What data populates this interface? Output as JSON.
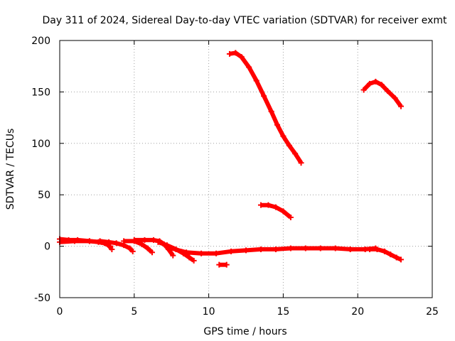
{
  "chart_data": {
    "type": "scatter",
    "title": "Day 311 of 2024, Sidereal Day-to-day VTEC variation (SDTVAR) for receiver exmt",
    "xlabel": "GPS time / hours",
    "ylabel": "SDTVAR / TECUs",
    "xlim": [
      0,
      25
    ],
    "ylim": [
      -50,
      200
    ],
    "x_ticks": [
      "0",
      "5",
      "10",
      "15",
      "20",
      "25"
    ],
    "y_ticks": [
      "-50",
      "0",
      "50",
      "100",
      "150",
      "200"
    ],
    "grid": true,
    "color": "#ff0000",
    "series": [
      {
        "name": "track-1",
        "x": [
          0.0,
          0.6,
          1.2,
          2.0,
          2.8,
          3.2,
          3.5
        ],
        "y": [
          7,
          6,
          6,
          5,
          4,
          2,
          -3
        ]
      },
      {
        "name": "track-2",
        "x": [
          0.0,
          1.0,
          2.0,
          2.6,
          3.0,
          3.4
        ],
        "y": [
          4,
          5,
          5,
          4,
          3,
          0
        ]
      },
      {
        "name": "track-3",
        "x": [
          2.7,
          3.3,
          3.8,
          4.3,
          4.7,
          4.9
        ],
        "y": [
          5,
          4,
          3,
          1,
          -2,
          -5
        ]
      },
      {
        "name": "track-4",
        "x": [
          4.3,
          5.0,
          5.5,
          5.9,
          6.2
        ],
        "y": [
          5,
          5,
          2,
          -2,
          -6
        ]
      },
      {
        "name": "track-5",
        "x": [
          5.0,
          5.7,
          6.3,
          6.7,
          7.0,
          7.3,
          7.6
        ],
        "y": [
          6,
          6,
          6,
          5,
          2,
          -3,
          -9
        ]
      },
      {
        "name": "track-6",
        "x": [
          6.6,
          7.2,
          7.8,
          8.3,
          8.7,
          9.0
        ],
        "y": [
          4,
          1,
          -3,
          -7,
          -11,
          -14
        ]
      },
      {
        "name": "track-7",
        "x": [
          7.5,
          8.5,
          9.5,
          10.5,
          11.5,
          12.5,
          13.5,
          14.5,
          15.5,
          16.5,
          17.5,
          18.5,
          19.5,
          20.5,
          21.2
        ],
        "y": [
          -2,
          -6,
          -7,
          -7,
          -5,
          -4,
          -3,
          -3,
          -2,
          -2,
          -2,
          -2,
          -3,
          -3,
          -2
        ]
      },
      {
        "name": "track-8",
        "x": [
          10.7,
          11.2
        ],
        "y": [
          -18,
          -18
        ]
      },
      {
        "name": "track-9",
        "x": [
          11.4,
          11.8,
          12.2,
          12.7,
          13.2,
          13.7,
          14.2,
          14.6,
          15.0,
          15.4,
          15.8,
          16.2
        ],
        "y": [
          187,
          188,
          184,
          174,
          161,
          146,
          131,
          118,
          107,
          98,
          90,
          81
        ]
      },
      {
        "name": "track-10",
        "x": [
          13.5,
          14.0,
          14.5,
          15.0,
          15.5
        ],
        "y": [
          40,
          40,
          38,
          34,
          28
        ]
      },
      {
        "name": "track-11",
        "x": [
          20.4,
          20.8,
          21.2,
          21.6,
          22.0,
          22.5,
          22.9
        ],
        "y": [
          152,
          158,
          160,
          157,
          151,
          144,
          136
        ]
      },
      {
        "name": "track-12",
        "x": [
          20.8,
          21.3,
          21.8,
          22.2,
          22.6,
          22.9
        ],
        "y": [
          -3,
          -3,
          -5,
          -8,
          -11,
          -13
        ]
      }
    ]
  }
}
